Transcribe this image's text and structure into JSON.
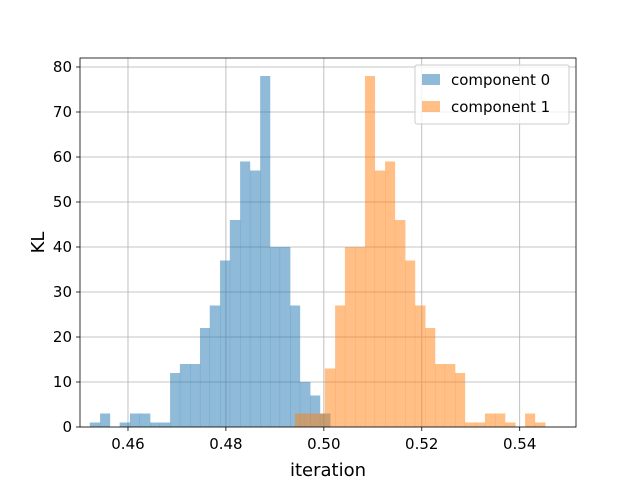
{
  "chart_data": {
    "type": "histogram",
    "title": "",
    "xlabel": "iteration",
    "ylabel": "KL",
    "xlim": [
      0.4502,
      0.5515
    ],
    "ylim": [
      0,
      82
    ],
    "xticks": [
      0.46,
      0.48,
      0.5,
      0.52,
      0.54
    ],
    "xtick_labels": [
      "0.46",
      "0.48",
      "0.50",
      "0.52",
      "0.54"
    ],
    "yticks": [
      0,
      10,
      20,
      30,
      40,
      50,
      60,
      70,
      80
    ],
    "ytick_labels": [
      "0",
      "10",
      "20",
      "30",
      "40",
      "50",
      "60",
      "70",
      "80"
    ],
    "grid": true,
    "legend_position": "top-right",
    "series": [
      {
        "name": "component 0",
        "color": "#1f77b4",
        "alpha": 0.5,
        "bins": [
          {
            "x0": 0.4522,
            "x1": 0.4543,
            "count": 1
          },
          {
            "x0": 0.4543,
            "x1": 0.4563,
            "count": 3
          },
          {
            "x0": 0.4563,
            "x1": 0.4583,
            "count": 0
          },
          {
            "x0": 0.4583,
            "x1": 0.4604,
            "count": 1
          },
          {
            "x0": 0.4604,
            "x1": 0.4624,
            "count": 3
          },
          {
            "x0": 0.4624,
            "x1": 0.4645,
            "count": 3
          },
          {
            "x0": 0.4645,
            "x1": 0.4665,
            "count": 1
          },
          {
            "x0": 0.4665,
            "x1": 0.4686,
            "count": 1
          },
          {
            "x0": 0.4686,
            "x1": 0.4706,
            "count": 12
          },
          {
            "x0": 0.4706,
            "x1": 0.4727,
            "count": 14
          },
          {
            "x0": 0.4727,
            "x1": 0.4747,
            "count": 14
          },
          {
            "x0": 0.4747,
            "x1": 0.4767,
            "count": 22
          },
          {
            "x0": 0.4767,
            "x1": 0.4788,
            "count": 27
          },
          {
            "x0": 0.4788,
            "x1": 0.4808,
            "count": 37
          },
          {
            "x0": 0.4808,
            "x1": 0.4829,
            "count": 46
          },
          {
            "x0": 0.4829,
            "x1": 0.4849,
            "count": 59
          },
          {
            "x0": 0.4849,
            "x1": 0.487,
            "count": 57
          },
          {
            "x0": 0.487,
            "x1": 0.489,
            "count": 78
          },
          {
            "x0": 0.489,
            "x1": 0.491,
            "count": 40
          },
          {
            "x0": 0.491,
            "x1": 0.4931,
            "count": 40
          },
          {
            "x0": 0.4931,
            "x1": 0.4951,
            "count": 27
          },
          {
            "x0": 0.4951,
            "x1": 0.4972,
            "count": 10
          },
          {
            "x0": 0.4972,
            "x1": 0.4992,
            "count": 7
          },
          {
            "x0": 0.4992,
            "x1": 0.5013,
            "count": 3
          }
        ]
      },
      {
        "name": "component 1",
        "color": "#ff7f0e",
        "alpha": 0.5,
        "bins": [
          {
            "x0": 0.4941,
            "x1": 0.4961,
            "count": 3
          },
          {
            "x0": 0.4961,
            "x1": 0.4982,
            "count": 3
          },
          {
            "x0": 0.4982,
            "x1": 0.5002,
            "count": 3
          },
          {
            "x0": 0.5002,
            "x1": 0.5023,
            "count": 13
          },
          {
            "x0": 0.5023,
            "x1": 0.5043,
            "count": 27
          },
          {
            "x0": 0.5043,
            "x1": 0.5064,
            "count": 40
          },
          {
            "x0": 0.5064,
            "x1": 0.5084,
            "count": 40
          },
          {
            "x0": 0.5084,
            "x1": 0.5104,
            "count": 78
          },
          {
            "x0": 0.5104,
            "x1": 0.5125,
            "count": 57
          },
          {
            "x0": 0.5125,
            "x1": 0.5145,
            "count": 59
          },
          {
            "x0": 0.5145,
            "x1": 0.5166,
            "count": 46
          },
          {
            "x0": 0.5166,
            "x1": 0.5186,
            "count": 37
          },
          {
            "x0": 0.5186,
            "x1": 0.5207,
            "count": 27
          },
          {
            "x0": 0.5207,
            "x1": 0.5227,
            "count": 22
          },
          {
            "x0": 0.5227,
            "x1": 0.5247,
            "count": 14
          },
          {
            "x0": 0.5247,
            "x1": 0.5268,
            "count": 14
          },
          {
            "x0": 0.5268,
            "x1": 0.5288,
            "count": 12
          },
          {
            "x0": 0.5288,
            "x1": 0.5309,
            "count": 1
          },
          {
            "x0": 0.5309,
            "x1": 0.5329,
            "count": 1
          },
          {
            "x0": 0.5329,
            "x1": 0.535,
            "count": 3
          },
          {
            "x0": 0.535,
            "x1": 0.537,
            "count": 3
          },
          {
            "x0": 0.537,
            "x1": 0.5391,
            "count": 1
          },
          {
            "x0": 0.5391,
            "x1": 0.5411,
            "count": 0
          },
          {
            "x0": 0.5411,
            "x1": 0.5431,
            "count": 3
          },
          {
            "x0": 0.5431,
            "x1": 0.5452,
            "count": 1
          }
        ]
      }
    ]
  }
}
